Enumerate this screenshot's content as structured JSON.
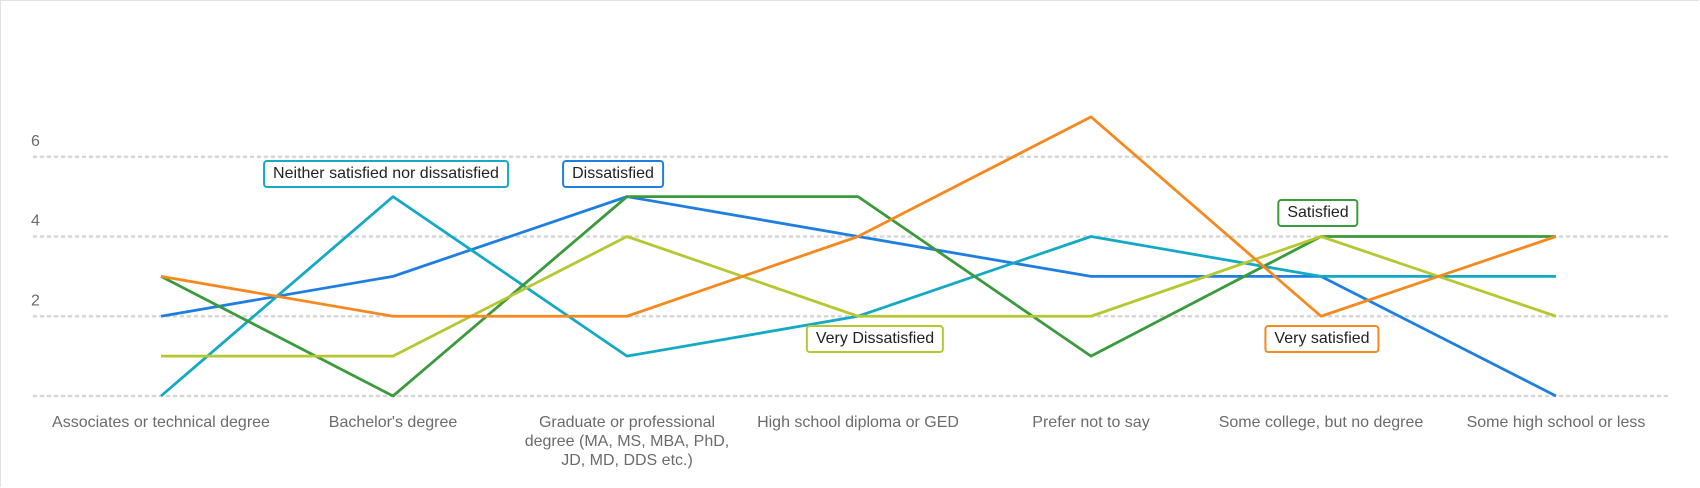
{
  "chart_data": {
    "type": "line",
    "categories": [
      "Associates or technical degree",
      "Bachelor's degree",
      "Graduate or professional degree (MA, MS, MBA, PhD, JD, MD, DDS etc.)",
      "High school diploma or GED",
      "Prefer not to say",
      "Some college, but no degree",
      "Some high school or less"
    ],
    "series": [
      {
        "name": "Dissatisfied",
        "color": "#1f7fe0",
        "values": [
          2,
          3,
          5,
          4,
          3,
          3,
          0
        ]
      },
      {
        "name": "Neither satisfied nor dissatisfied",
        "color": "#14a9c4",
        "values": [
          0,
          5,
          1,
          2,
          4,
          3,
          3
        ]
      },
      {
        "name": "Satisfied",
        "color": "#3a9a3c",
        "values": [
          3,
          0,
          5,
          5,
          1,
          4,
          4
        ]
      },
      {
        "name": "Very Dissatisfied",
        "color": "#b5c832",
        "values": [
          1,
          1,
          4,
          2,
          2,
          4,
          2
        ]
      },
      {
        "name": "Very satisfied",
        "color": "#f5891f",
        "values": [
          3,
          2,
          2,
          4,
          7,
          2,
          4
        ]
      }
    ],
    "ylim": [
      0,
      8
    ],
    "yticks": [
      2,
      4,
      6
    ],
    "grid": true
  }
}
